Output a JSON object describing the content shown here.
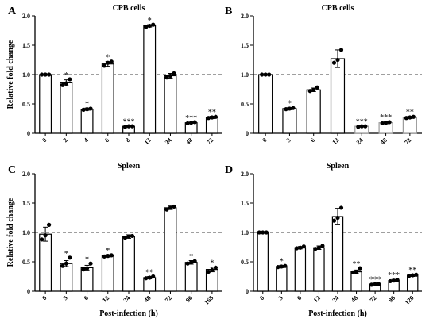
{
  "chart_data": [
    {
      "type": "bar",
      "letter": "A",
      "title": "CPB cells",
      "ylabel": "Relative fold change",
      "xlabel": "",
      "ylim": [
        0,
        2
      ],
      "yticks": [
        "0",
        "0.5",
        "1.0",
        "1.5",
        "2.0"
      ],
      "categories": [
        "0",
        "2",
        "4",
        "6",
        "8",
        "12",
        "24",
        "48",
        "72"
      ],
      "values": [
        1.0,
        0.86,
        0.41,
        1.18,
        0.12,
        1.83,
        0.98,
        0.18,
        0.27
      ],
      "errors": [
        0.01,
        0.05,
        0.02,
        0.04,
        0.01,
        0.02,
        0.04,
        0.01,
        0.02
      ],
      "points": [
        [
          1.0,
          1.0,
          1.0
        ],
        [
          0.82,
          0.85,
          0.92
        ],
        [
          0.4,
          0.41,
          0.42
        ],
        [
          1.15,
          1.2,
          1.22
        ],
        [
          0.11,
          0.12,
          0.12
        ],
        [
          1.81,
          1.83,
          1.85
        ],
        [
          0.95,
          0.98,
          1.02
        ],
        [
          0.17,
          0.18,
          0.19
        ],
        [
          0.26,
          0.27,
          0.28
        ]
      ],
      "annotations": [
        "",
        "*",
        "*",
        "*",
        "***",
        "*",
        "",
        "***",
        "**"
      ],
      "hollow": [
        false,
        false,
        false,
        false,
        false,
        false,
        false,
        false,
        false
      ]
    },
    {
      "type": "bar",
      "letter": "B",
      "title": "CPB cells",
      "ylabel": "",
      "xlabel": "",
      "ylim": [
        0,
        2
      ],
      "yticks": [
        "0",
        "0.5",
        "1.0",
        "1.5",
        "2.0"
      ],
      "categories": [
        "0",
        "3",
        "6",
        "12",
        "24",
        "48",
        "72"
      ],
      "values": [
        1.0,
        0.42,
        0.74,
        1.27,
        0.12,
        0.18,
        0.27
      ],
      "errors": [
        0.01,
        0.02,
        0.03,
        0.15,
        0.01,
        0.02,
        0.02
      ],
      "points": [
        [
          1.0,
          1.0,
          1.0
        ],
        [
          0.41,
          0.42,
          0.43
        ],
        [
          0.72,
          0.74,
          0.78
        ],
        [
          1.2,
          1.25,
          1.42
        ],
        [
          0.11,
          0.12,
          0.12
        ],
        [
          0.17,
          0.18,
          0.19
        ],
        [
          0.26,
          0.27,
          0.28
        ]
      ],
      "annotations": [
        "",
        "*",
        "",
        "",
        "***",
        "***",
        "**"
      ],
      "hollow": [
        false,
        false,
        false,
        false,
        true,
        true,
        true
      ]
    },
    {
      "type": "bar",
      "letter": "C",
      "title": "Spleen",
      "ylabel": "Relative fold change",
      "xlabel": "Post-infection (h)",
      "ylim": [
        0,
        2
      ],
      "yticks": [
        "0",
        "0.5",
        "1.0",
        "1.5",
        "2.0"
      ],
      "categories": [
        "0",
        "3",
        "6",
        "12",
        "24",
        "48",
        "72",
        "96",
        "168"
      ],
      "values": [
        0.97,
        0.47,
        0.4,
        0.6,
        0.93,
        0.23,
        1.42,
        0.49,
        0.37
      ],
      "errors": [
        0.12,
        0.05,
        0.04,
        0.02,
        0.03,
        0.02,
        0.03,
        0.03,
        0.04
      ],
      "points": [
        [
          0.88,
          0.95,
          1.13
        ],
        [
          0.43,
          0.47,
          0.57
        ],
        [
          0.37,
          0.39,
          0.47
        ],
        [
          0.59,
          0.6,
          0.61
        ],
        [
          0.91,
          0.93,
          0.94
        ],
        [
          0.22,
          0.23,
          0.25
        ],
        [
          1.39,
          1.42,
          1.44
        ],
        [
          0.47,
          0.49,
          0.51
        ],
        [
          0.33,
          0.36,
          0.4
        ]
      ],
      "annotations": [
        "",
        "*",
        "*",
        "*",
        "",
        "**",
        "",
        "*",
        "*"
      ],
      "hollow": [
        false,
        false,
        false,
        false,
        false,
        false,
        false,
        false,
        false
      ]
    },
    {
      "type": "bar",
      "letter": "D",
      "title": "Spleen",
      "ylabel": "",
      "xlabel": "Post-infection (h)",
      "ylim": [
        0,
        2
      ],
      "yticks": [
        "0",
        "0.5",
        "1.0",
        "1.5",
        "2.0"
      ],
      "categories": [
        "0",
        "3",
        "6",
        "12",
        "24",
        "48",
        "72",
        "96",
        "120"
      ],
      "values": [
        1.0,
        0.42,
        0.74,
        0.74,
        1.27,
        0.33,
        0.12,
        0.18,
        0.27
      ],
      "errors": [
        0.01,
        0.02,
        0.02,
        0.03,
        0.14,
        0.03,
        0.01,
        0.02,
        0.02
      ],
      "points": [
        [
          1.0,
          1.0,
          1.0
        ],
        [
          0.41,
          0.42,
          0.43
        ],
        [
          0.73,
          0.74,
          0.76
        ],
        [
          0.72,
          0.74,
          0.77
        ],
        [
          1.2,
          1.25,
          1.42
        ],
        [
          0.32,
          0.33,
          0.39
        ],
        [
          0.11,
          0.12,
          0.12
        ],
        [
          0.17,
          0.18,
          0.19
        ],
        [
          0.26,
          0.27,
          0.28
        ]
      ],
      "annotations": [
        "",
        "*",
        "",
        "",
        "",
        "**",
        "***",
        "***",
        "**"
      ],
      "hollow": [
        false,
        false,
        false,
        false,
        false,
        false,
        false,
        false,
        false
      ]
    }
  ]
}
